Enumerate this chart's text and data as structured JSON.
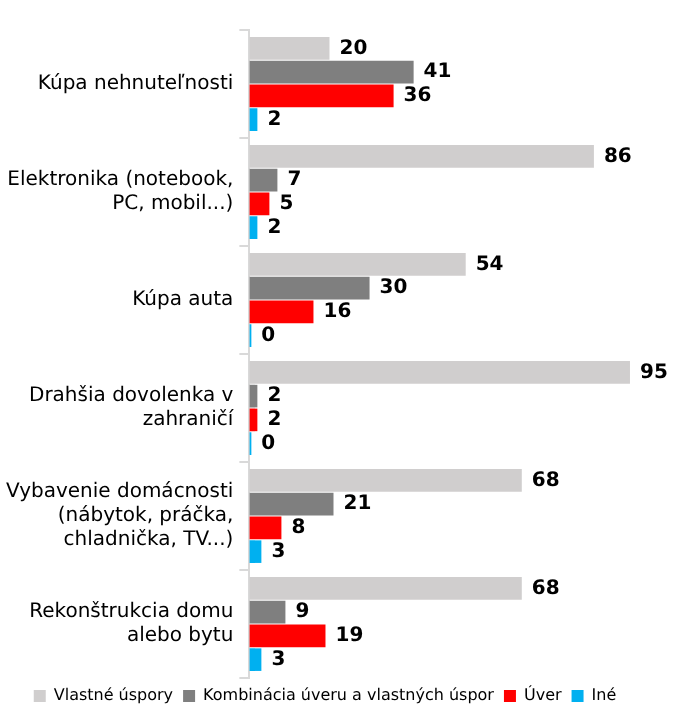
{
  "chart_data": {
    "type": "bar",
    "orientation": "horizontal",
    "categories": [
      "Kúpa nehnuteľnosti",
      "Elektronika (notebook, PC, mobil...)",
      "Kúpa auta",
      "Drahšia dovolenka v zahraničí",
      "Vybavenie domácnosti (nábytok, práčka, chladnička, TV...)",
      "Rekonštrukcia domu alebo bytu"
    ],
    "series": [
      {
        "name": "Vlastné úspory",
        "color": "#d0cece",
        "values": [
          20,
          86,
          54,
          95,
          68,
          68
        ]
      },
      {
        "name": "Kombinácia úveru a vlastných úspor",
        "color": "#7f7f7f",
        "values": [
          41,
          7,
          30,
          2,
          21,
          9
        ]
      },
      {
        "name": "Úver",
        "color": "#ff0000",
        "values": [
          36,
          5,
          16,
          2,
          8,
          19
        ]
      },
      {
        "name": "Iné",
        "color": "#00b0f0",
        "values": [
          2,
          2,
          0,
          0,
          3,
          3
        ]
      }
    ],
    "data_labels": true,
    "legend": "bottom"
  }
}
